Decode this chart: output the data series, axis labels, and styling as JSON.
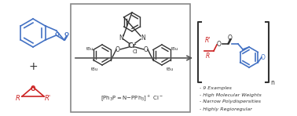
{
  "bg_color": "#ffffff",
  "box_color": "#888888",
  "blue_color": "#4472c4",
  "red_color": "#cc2222",
  "dark_color": "#333333",
  "arrow_color": "#555555",
  "text_items": [
    "- 9 Examples",
    "- High Molecular Weights",
    "- Narrow Polydispersities",
    "- Highly Regioregular"
  ],
  "tBu_labels": [
    "tBu",
    "tBu",
    "tBu",
    "tBu"
  ],
  "cr_label": "Cr",
  "cl_label": "Cl",
  "n_label": "N",
  "o_label": "O",
  "plus_sign": "+",
  "r_label": "R",
  "rprime_label": "R'",
  "n_subscript": "n"
}
